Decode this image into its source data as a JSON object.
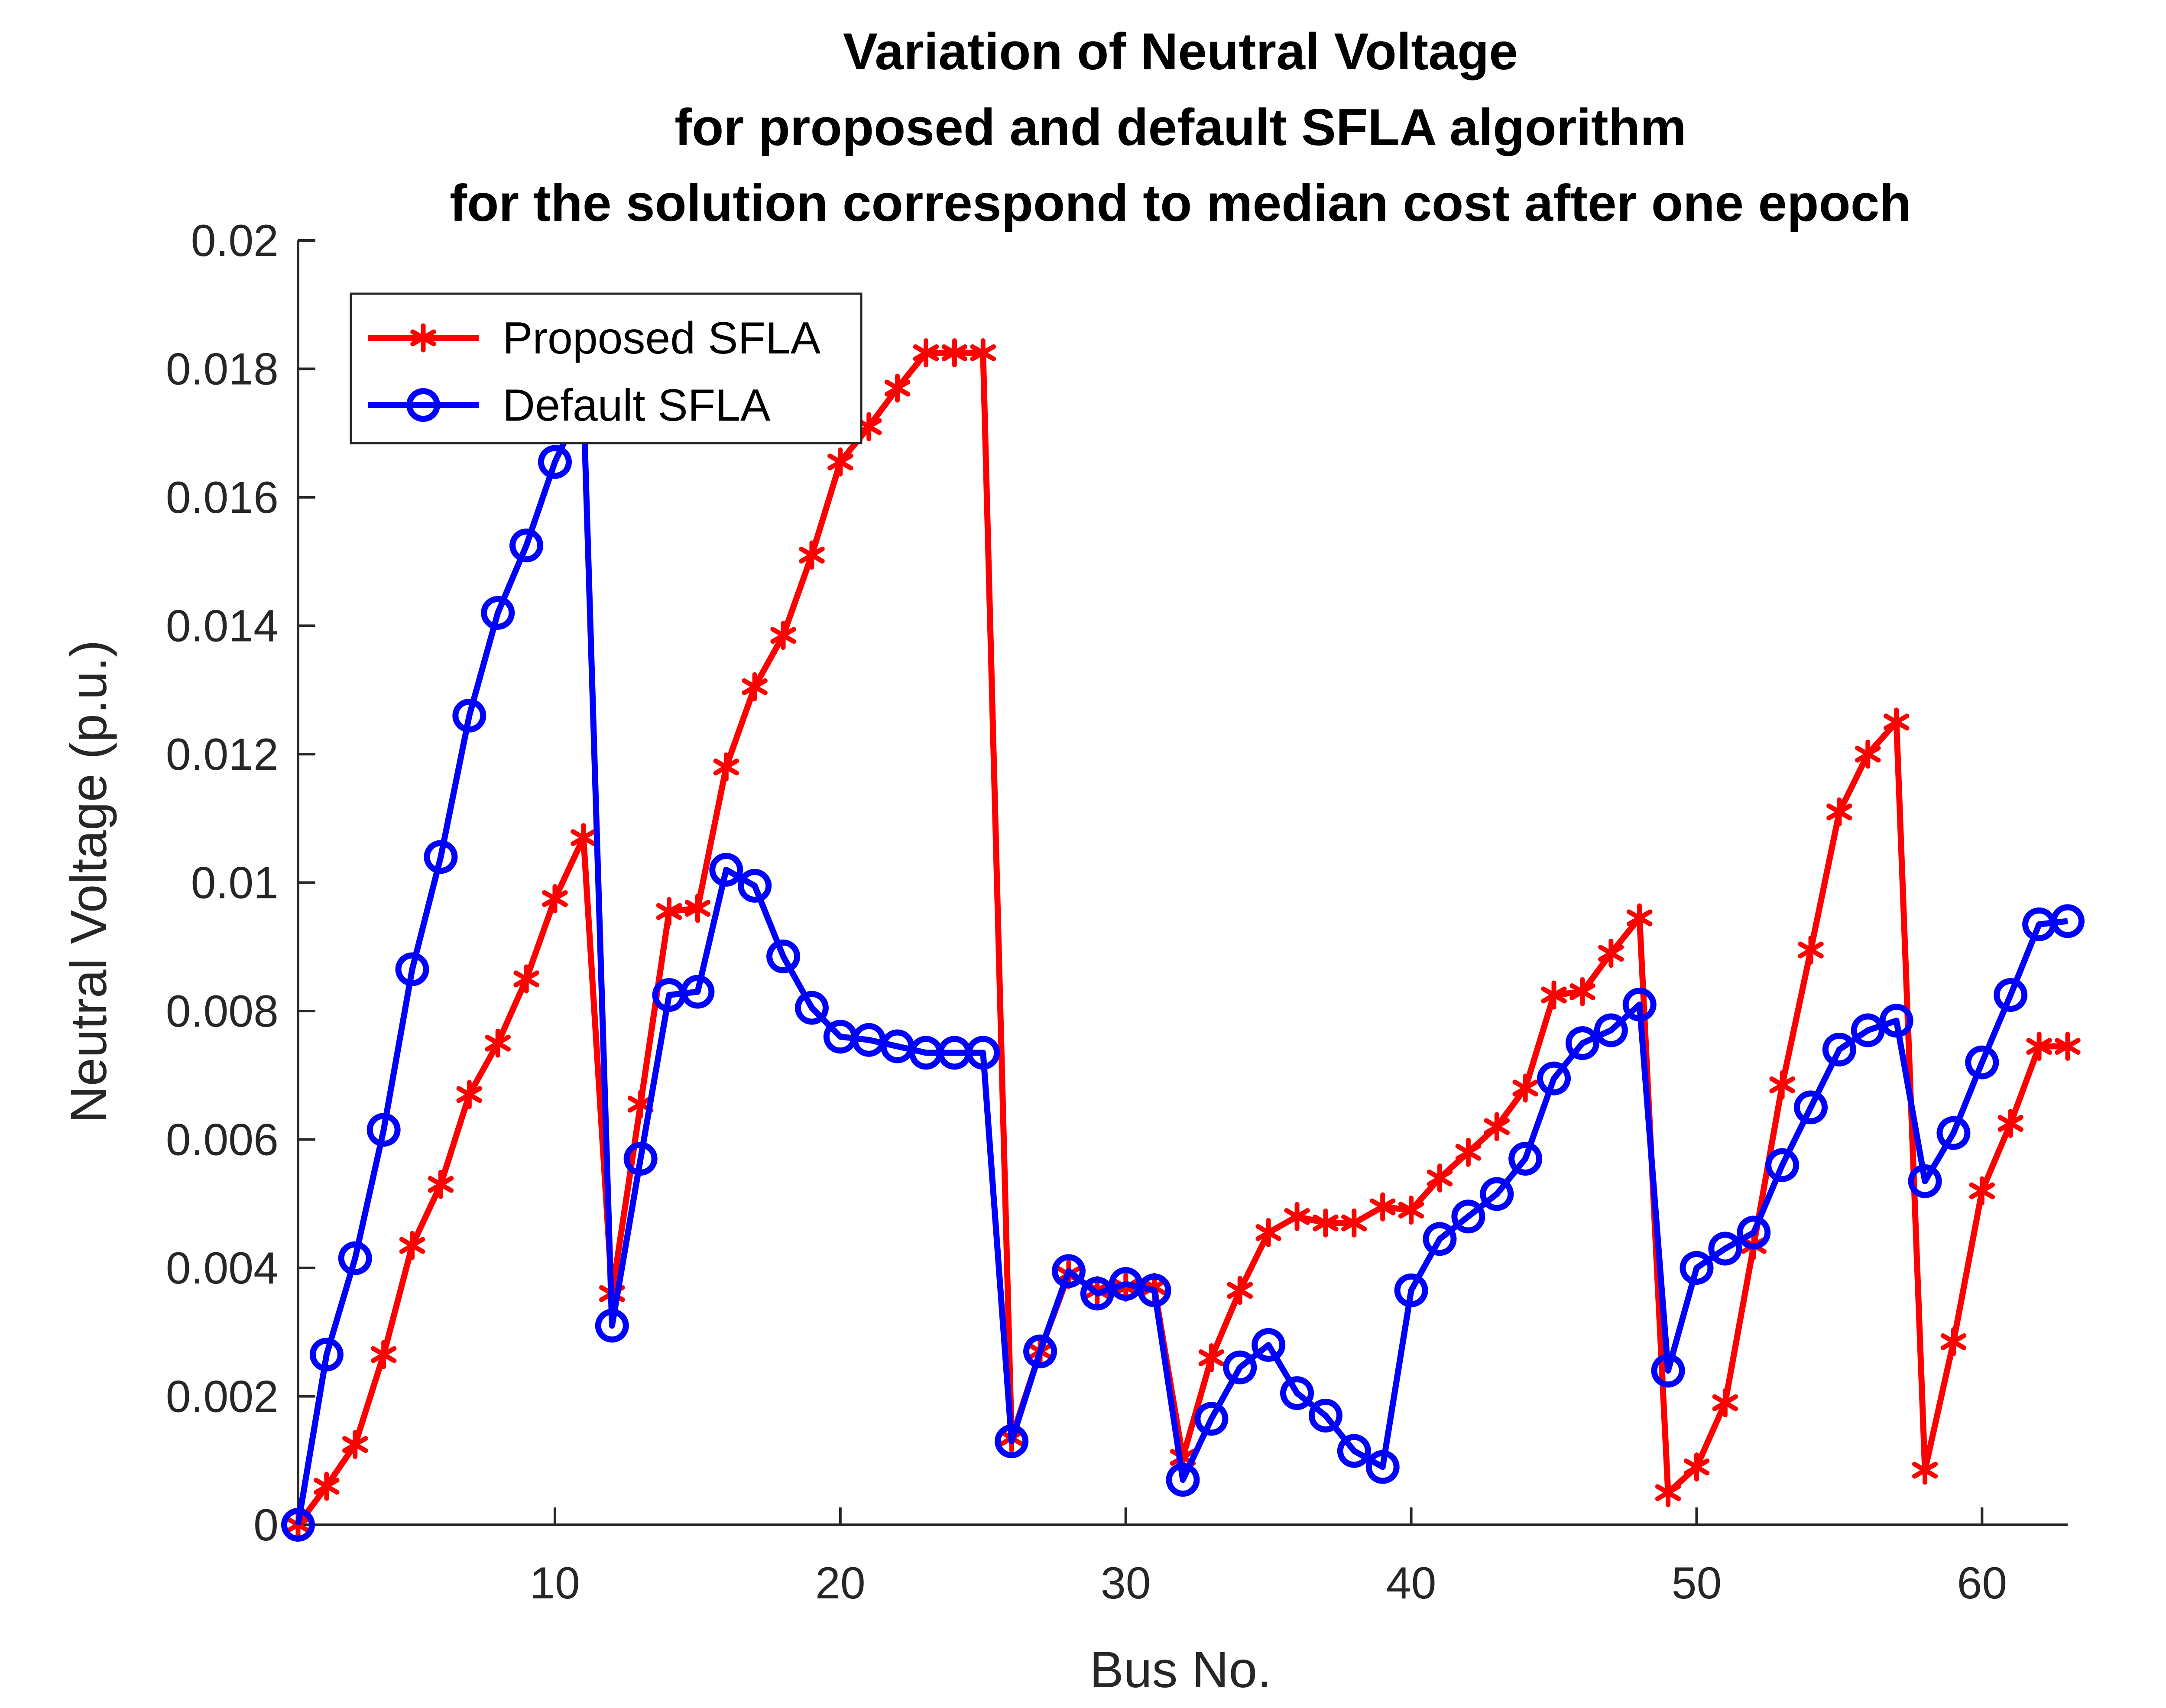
{
  "chart_data": {
    "type": "line",
    "title_lines": [
      "Variation of Neutral Voltage",
      "for proposed and default SFLA algorithm",
      "for the solution correspond to median cost after one epoch"
    ],
    "xlabel": "Bus No.",
    "ylabel": "Neutral Voltage (p.u.)",
    "xlim": [
      1,
      63
    ],
    "ylim": [
      0,
      0.02
    ],
    "xticks": [
      10,
      20,
      30,
      40,
      50,
      60
    ],
    "xtick_labels": [
      "10",
      "20",
      "30",
      "40",
      "50",
      "60"
    ],
    "yticks": [
      0,
      0.002,
      0.004,
      0.006,
      0.008,
      0.01,
      0.012,
      0.014,
      0.016,
      0.018,
      0.02
    ],
    "ytick_labels": [
      "0",
      "0.002",
      "0.004",
      "0.006",
      "0.008",
      "0.01",
      "0.012",
      "0.014",
      "0.016",
      "0.018",
      "0.02"
    ],
    "grid": false,
    "legend_position": "top-left",
    "x": [
      1,
      2,
      3,
      4,
      5,
      6,
      7,
      8,
      9,
      10,
      11,
      12,
      13,
      14,
      15,
      16,
      17,
      18,
      19,
      20,
      21,
      22,
      23,
      24,
      25,
      26,
      27,
      28,
      29,
      30,
      31,
      32,
      33,
      34,
      35,
      36,
      37,
      38,
      39,
      40,
      41,
      42,
      43,
      44,
      45,
      46,
      47,
      48,
      49,
      50,
      51,
      52,
      53,
      54,
      55,
      56,
      57,
      58,
      59,
      60,
      61,
      62,
      63
    ],
    "series": [
      {
        "name": "Proposed SFLA",
        "color": "#ff0000",
        "marker": "asterisk",
        "values": [
          0,
          0.0006,
          0.00125,
          0.00265,
          0.00435,
          0.0053,
          0.0067,
          0.0075,
          0.0085,
          0.00975,
          0.0107,
          0.0036,
          0.00655,
          0.00955,
          0.0096,
          0.0118,
          0.01305,
          0.01385,
          0.0151,
          0.01655,
          0.0171,
          0.0177,
          0.01825,
          0.01825,
          0.01825,
          0.00135,
          0.0027,
          0.0039,
          0.00365,
          0.0037,
          0.0037,
          0.00105,
          0.0026,
          0.00365,
          0.00455,
          0.0048,
          0.0047,
          0.0047,
          0.00495,
          0.0049,
          0.0054,
          0.0058,
          0.0062,
          0.0068,
          0.00825,
          0.0083,
          0.0089,
          0.00945,
          0.0005,
          0.0009,
          0.0019,
          0.00435,
          0.00685,
          0.00895,
          0.0111,
          0.012,
          0.0125,
          0.00085,
          0.00285,
          0.0052,
          0.00625,
          0.00745,
          0.00745
        ]
      },
      {
        "name": "Default SFLA",
        "color": "#0000ff",
        "marker": "circle",
        "values": [
          0,
          0.00265,
          0.00415,
          0.00615,
          0.00865,
          0.0104,
          0.0126,
          0.0142,
          0.01525,
          0.01655,
          0.0175,
          0.0031,
          0.0057,
          0.00825,
          0.0083,
          0.0102,
          0.00995,
          0.00885,
          0.00805,
          0.0076,
          0.00755,
          0.00745,
          0.00735,
          0.00735,
          0.00735,
          0.0013,
          0.0027,
          0.00395,
          0.0036,
          0.00375,
          0.00365,
          0.0007,
          0.00165,
          0.00245,
          0.0028,
          0.00205,
          0.0017,
          0.00115,
          0.0009,
          0.00365,
          0.00445,
          0.0048,
          0.00515,
          0.0057,
          0.00695,
          0.0075,
          0.0077,
          0.0081,
          0.0024,
          0.004,
          0.0043,
          0.00455,
          0.0056,
          0.0065,
          0.0074,
          0.0077,
          0.00785,
          0.00535,
          0.0061,
          0.0072,
          0.00825,
          0.00935,
          0.0094
        ]
      }
    ]
  }
}
